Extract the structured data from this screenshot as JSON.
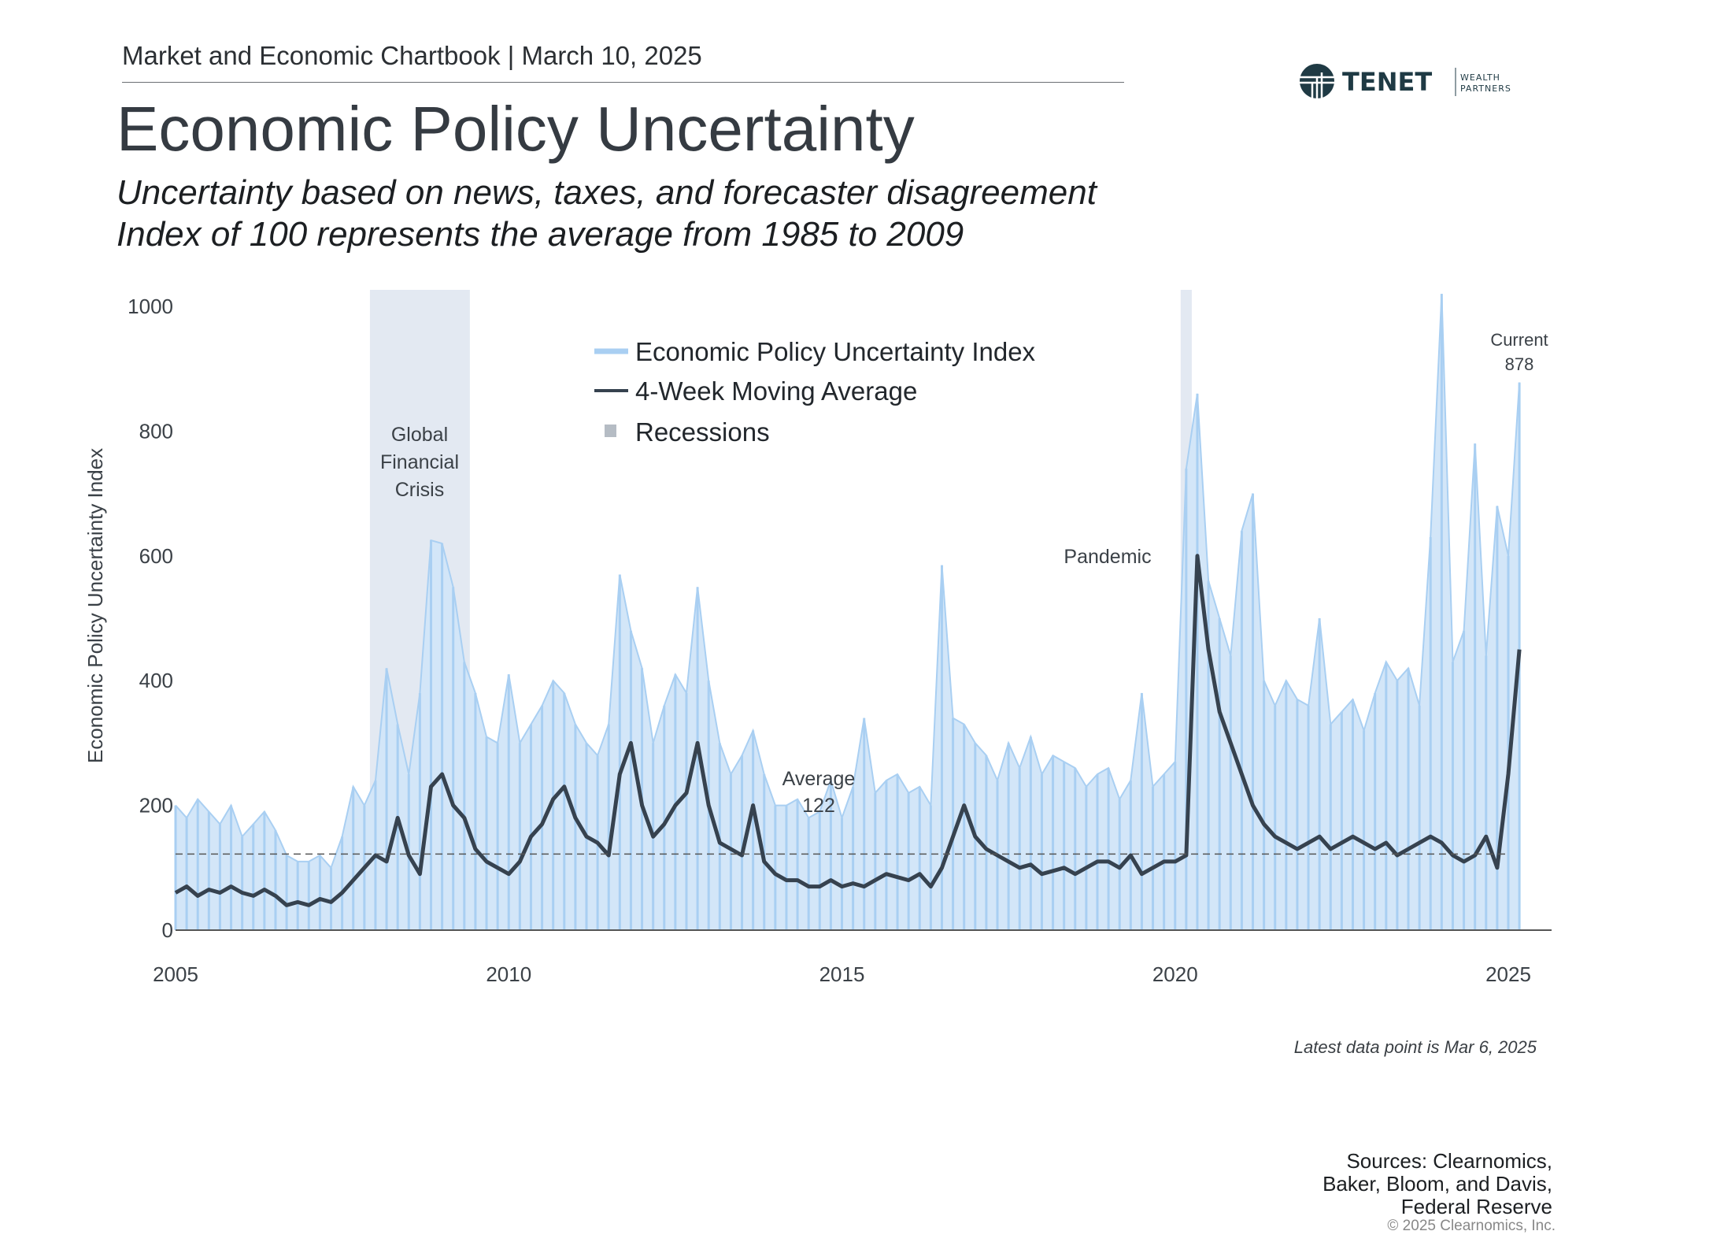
{
  "header": {
    "kicker": "Market and Economic Chartbook | March 10, 2025",
    "title": "Economic Policy Uncertainty",
    "subtitle_line1": "Uncertainty based on news, taxes, and forecaster disagreement",
    "subtitle_line2": "Index of 100 represents the average from 1985 to 2009"
  },
  "logo": {
    "name": "TENET",
    "tagline1": "WEALTH",
    "tagline2": "PARTNERS",
    "color": "#1f3a44"
  },
  "footer": {
    "latest": "Latest data point is Mar 6, 2025",
    "sources": [
      "Sources: Clearnomics,",
      "Baker, Bloom, and Davis,",
      "Federal Reserve"
    ],
    "copyright": "© 2025 Clearnomics, Inc."
  },
  "chart_data": {
    "type": "area",
    "ylabel": "Economic Policy Uncertainty Index",
    "xlabel": "",
    "ylim": [
      0,
      1000
    ],
    "xlim": [
      "2005-01",
      "2025-12"
    ],
    "yticks": [
      "0",
      "200",
      "400",
      "600",
      "800",
      "1000"
    ],
    "xticks": [
      "2005",
      "2010",
      "2015",
      "2020",
      "2025"
    ],
    "grid": false,
    "legend_position": "top-center",
    "legend": [
      "Economic Policy Uncertainty Index",
      "4-Week Moving Average",
      "Recessions"
    ],
    "colors": {
      "index": "#a9cff2",
      "index_fill": "#d3e6f8",
      "moving_average": "#36424f",
      "recession": "#e3e9f2",
      "average_line": "#555555"
    },
    "dates": [
      "2005-01",
      "2005-03",
      "2005-05",
      "2005-07",
      "2005-09",
      "2005-11",
      "2006-01",
      "2006-03",
      "2006-05",
      "2006-07",
      "2006-09",
      "2006-11",
      "2007-01",
      "2007-03",
      "2007-05",
      "2007-07",
      "2007-09",
      "2007-11",
      "2008-01",
      "2008-03",
      "2008-05",
      "2008-07",
      "2008-09",
      "2008-11",
      "2009-01",
      "2009-03",
      "2009-05",
      "2009-07",
      "2009-09",
      "2009-11",
      "2010-01",
      "2010-03",
      "2010-05",
      "2010-07",
      "2010-09",
      "2010-11",
      "2011-01",
      "2011-03",
      "2011-05",
      "2011-07",
      "2011-09",
      "2011-11",
      "2012-01",
      "2012-03",
      "2012-05",
      "2012-07",
      "2012-09",
      "2012-11",
      "2013-01",
      "2013-03",
      "2013-05",
      "2013-07",
      "2013-09",
      "2013-11",
      "2014-01",
      "2014-03",
      "2014-05",
      "2014-07",
      "2014-09",
      "2014-11",
      "2015-01",
      "2015-03",
      "2015-05",
      "2015-07",
      "2015-09",
      "2015-11",
      "2016-01",
      "2016-03",
      "2016-05",
      "2016-07",
      "2016-09",
      "2016-11",
      "2017-01",
      "2017-03",
      "2017-05",
      "2017-07",
      "2017-09",
      "2017-11",
      "2018-01",
      "2018-03",
      "2018-05",
      "2018-07",
      "2018-09",
      "2018-11",
      "2019-01",
      "2019-03",
      "2019-05",
      "2019-07",
      "2019-09",
      "2019-11",
      "2020-01",
      "2020-03",
      "2020-05",
      "2020-07",
      "2020-09",
      "2020-11",
      "2021-01",
      "2021-03",
      "2021-05",
      "2021-07",
      "2021-09",
      "2021-11",
      "2022-01",
      "2022-03",
      "2022-05",
      "2022-07",
      "2022-09",
      "2022-11",
      "2023-01",
      "2023-03",
      "2023-05",
      "2023-07",
      "2023-09",
      "2023-11",
      "2024-01",
      "2024-03",
      "2024-05",
      "2024-07",
      "2024-09",
      "2024-11",
      "2025-01",
      "2025-03"
    ],
    "series": [
      {
        "name": "Economic Policy Uncertainty Index",
        "values": [
          200,
          180,
          210,
          190,
          170,
          200,
          150,
          170,
          190,
          160,
          120,
          110,
          110,
          120,
          100,
          150,
          230,
          200,
          240,
          420,
          330,
          250,
          380,
          625,
          620,
          550,
          430,
          380,
          310,
          300,
          410,
          300,
          330,
          360,
          400,
          380,
          330,
          300,
          280,
          330,
          570,
          480,
          420,
          300,
          360,
          410,
          380,
          550,
          400,
          300,
          250,
          280,
          320,
          250,
          200,
          200,
          210,
          180,
          190,
          240,
          180,
          230,
          340,
          220,
          240,
          250,
          220,
          230,
          200,
          585,
          340,
          330,
          300,
          280,
          240,
          300,
          260,
          310,
          250,
          280,
          270,
          260,
          230,
          250,
          260,
          210,
          240,
          380,
          230,
          250,
          270,
          740,
          860,
          560,
          500,
          440,
          640,
          700,
          400,
          360,
          400,
          370,
          360,
          500,
          330,
          350,
          370,
          320,
          380,
          430,
          400,
          420,
          360,
          630,
          1020,
          430,
          480,
          780,
          440,
          680,
          600,
          878
        ]
      },
      {
        "name": "4-Week Moving Average",
        "values": [
          60,
          70,
          55,
          65,
          60,
          70,
          60,
          55,
          65,
          55,
          40,
          45,
          40,
          50,
          45,
          60,
          80,
          100,
          120,
          110,
          180,
          120,
          90,
          230,
          250,
          200,
          180,
          130,
          110,
          100,
          90,
          110,
          150,
          170,
          210,
          230,
          180,
          150,
          140,
          120,
          250,
          300,
          200,
          150,
          170,
          200,
          220,
          300,
          200,
          140,
          130,
          120,
          200,
          110,
          90,
          80,
          80,
          70,
          70,
          80,
          70,
          75,
          70,
          80,
          90,
          85,
          80,
          90,
          70,
          100,
          150,
          200,
          150,
          130,
          120,
          110,
          100,
          105,
          90,
          95,
          100,
          90,
          100,
          110,
          110,
          100,
          120,
          90,
          100,
          110,
          110,
          120,
          600,
          450,
          350,
          300,
          250,
          200,
          170,
          150,
          140,
          130,
          140,
          150,
          130,
          140,
          150,
          140,
          130,
          140,
          120,
          130,
          140,
          150,
          140,
          120,
          110,
          120,
          150,
          100,
          250,
          450
        ]
      }
    ],
    "average": {
      "value": 122,
      "label": "Average",
      "value_label": "122"
    },
    "recessions": [
      {
        "start": "2007-12",
        "end": "2009-06"
      },
      {
        "start": "2020-02",
        "end": "2020-04"
      }
    ],
    "annotations": [
      {
        "text": [
          "Global",
          "Financial",
          "Crisis"
        ],
        "date": "2008-09"
      },
      {
        "text": [
          "Pandemic"
        ],
        "date": "2019-06"
      },
      {
        "text": [
          "Current",
          "878"
        ],
        "date": "2025-03"
      }
    ]
  }
}
